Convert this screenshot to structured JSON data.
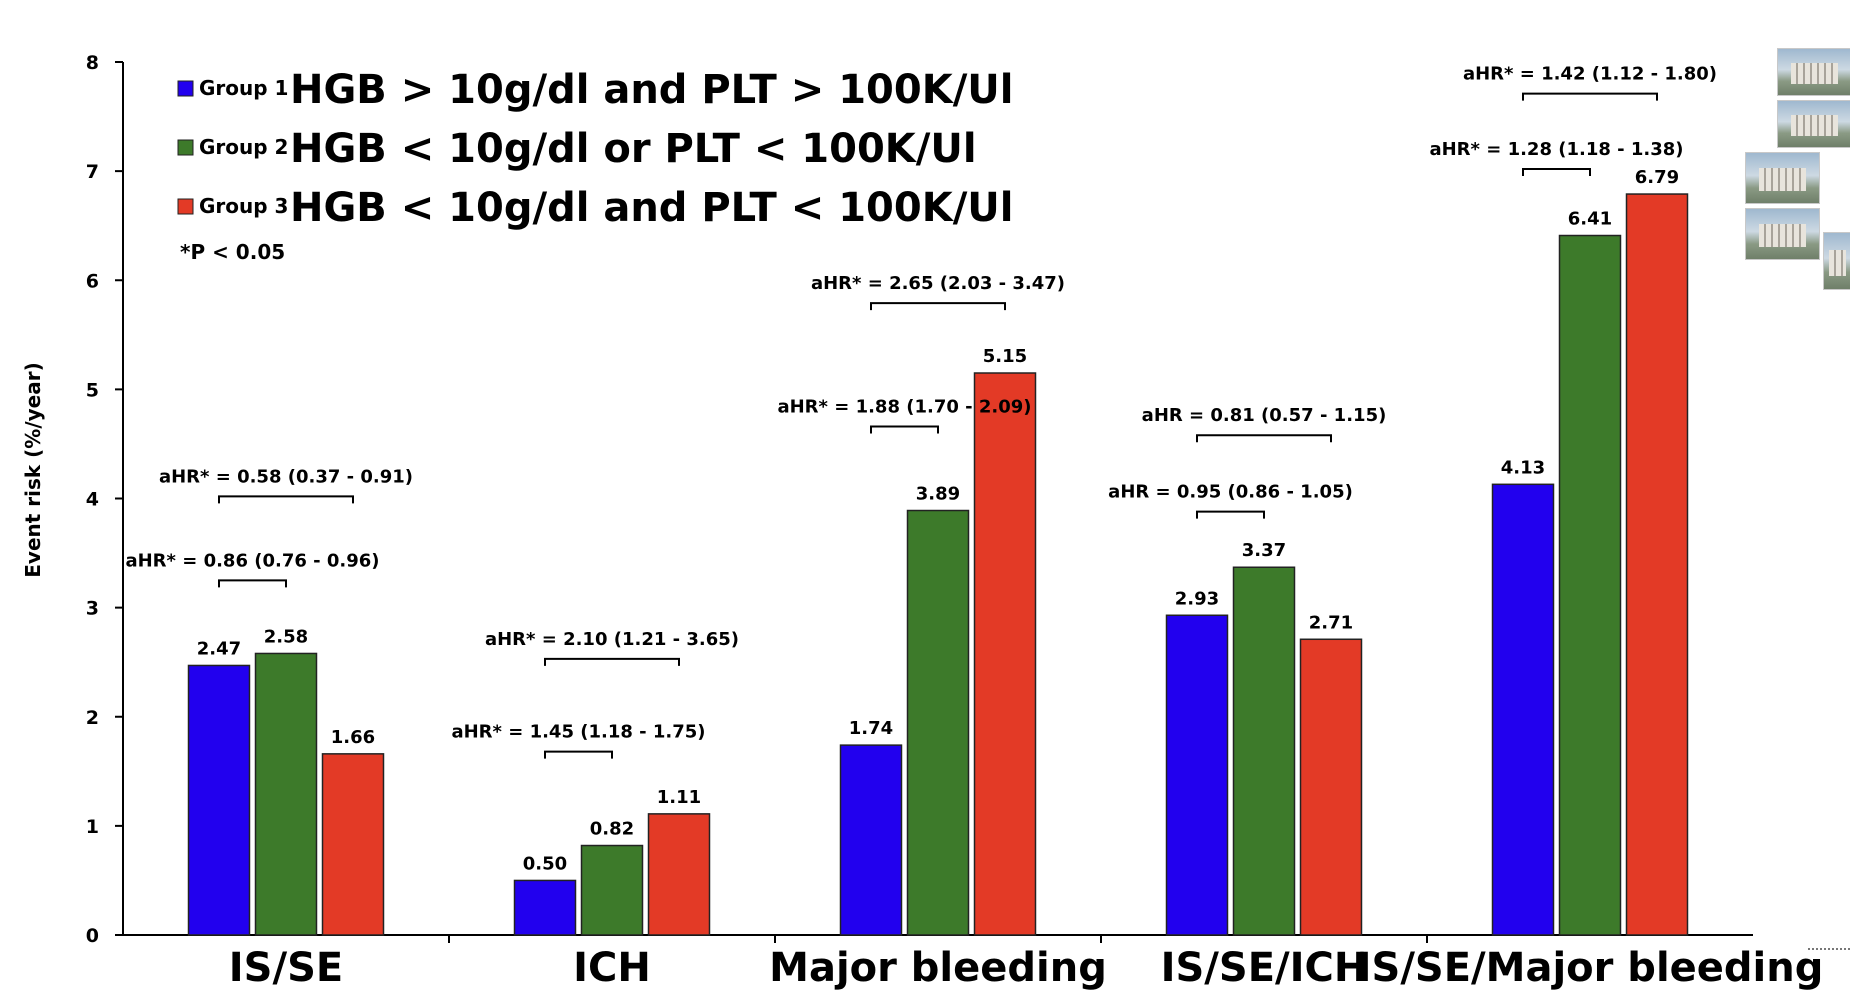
{
  "chart_data": {
    "type": "bar",
    "title": "",
    "xlabel": "",
    "ylabel": "Event risk (%/year)",
    "ylim": [
      0,
      8
    ],
    "yticks": [
      "0",
      "1",
      "2",
      "3",
      "4",
      "5",
      "6",
      "7",
      "8"
    ],
    "categories": [
      "IS/SE",
      "ICH",
      "Major bleeding",
      "IS/SE/ICH",
      "IS/SE/Major bleeding"
    ],
    "series": [
      {
        "name": "Group 1",
        "description": "HGB > 10g/dl and PLT > 100K/Ul",
        "color": "#2200ee",
        "values": [
          2.47,
          0.5,
          1.74,
          2.93,
          4.13
        ],
        "labels": [
          "2.47",
          "0.50",
          "1.74",
          "2.93",
          "4.13"
        ]
      },
      {
        "name": "Group 2",
        "description": "HGB < 10g/dl or PLT < 100K/Ul",
        "color": "#3d7a2a",
        "values": [
          2.58,
          0.82,
          3.89,
          3.37,
          6.41
        ],
        "labels": [
          "2.58",
          "0.82",
          "3.89",
          "3.37",
          "6.41"
        ]
      },
      {
        "name": "Group 3",
        "description": "HGB < 10g/dl and PLT < 100K/Ul",
        "color": "#e33a26",
        "values": [
          1.66,
          1.11,
          5.15,
          2.71,
          6.79
        ],
        "labels": [
          "1.66",
          "1.11",
          "5.15",
          "2.71",
          "6.79"
        ]
      }
    ],
    "legend_note": "*P < 0.05",
    "legend_position": "top-left",
    "grid": false,
    "annotations": [
      {
        "category": 0,
        "from": 0,
        "to": 1,
        "y": 3.25,
        "text": "aHR* = 0.86 (0.76 - 0.96)"
      },
      {
        "category": 0,
        "from": 0,
        "to": 2,
        "y": 4.02,
        "text": "aHR* = 0.58 (0.37 - 0.91)"
      },
      {
        "category": 1,
        "from": 0,
        "to": 1,
        "y": 1.68,
        "text": "aHR* = 1.45 (1.18 - 1.75)"
      },
      {
        "category": 1,
        "from": 0,
        "to": 2,
        "y": 2.53,
        "text": "aHR* = 2.10 (1.21 - 3.65)"
      },
      {
        "category": 2,
        "from": 0,
        "to": 1,
        "y": 4.66,
        "text": "aHR* = 1.88 (1.70 - 2.09)"
      },
      {
        "category": 2,
        "from": 0,
        "to": 2,
        "y": 5.79,
        "text": "aHR* = 2.65 (2.03 - 3.47)"
      },
      {
        "category": 3,
        "from": 0,
        "to": 1,
        "y": 3.88,
        "text": "aHR = 0.95 (0.86 - 1.05)"
      },
      {
        "category": 3,
        "from": 0,
        "to": 2,
        "y": 4.58,
        "text": "aHR = 0.81 (0.57 - 1.15)"
      },
      {
        "category": 4,
        "from": 0,
        "to": 1,
        "y": 7.02,
        "text": "aHR* = 1.28 (1.18 - 1.38)"
      },
      {
        "category": 4,
        "from": 0,
        "to": 2,
        "y": 7.71,
        "text": "aHR* = 1.42 (1.12 - 1.80)"
      }
    ]
  }
}
